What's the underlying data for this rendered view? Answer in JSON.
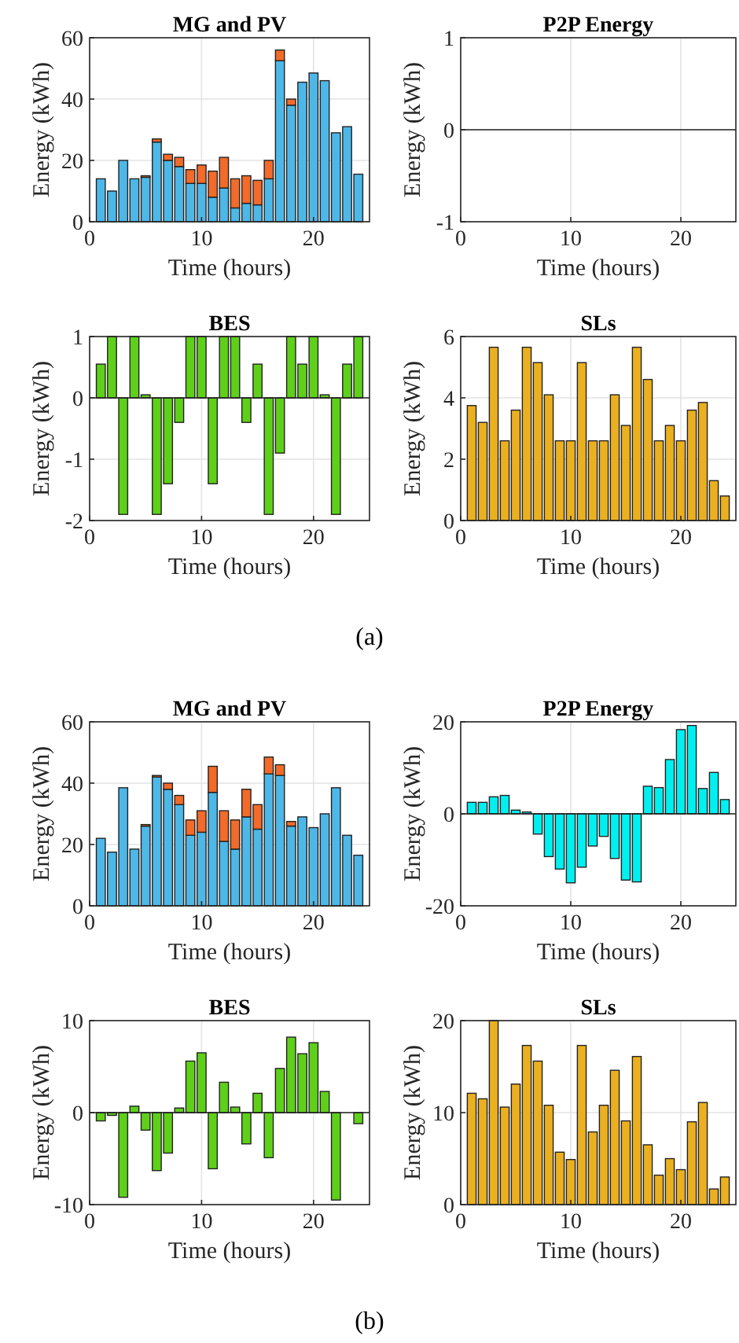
{
  "chart_data": [
    {
      "type": "bar",
      "title": "MG and PV",
      "xlabel": "Time (hours)",
      "ylabel": "Energy (kWh)",
      "x": [
        1,
        2,
        3,
        4,
        5,
        6,
        7,
        8,
        9,
        10,
        11,
        12,
        13,
        14,
        15,
        16,
        17,
        18,
        19,
        20,
        21,
        22,
        23,
        24
      ],
      "xlim": [
        0,
        25
      ],
      "xticks": [
        0,
        10,
        20
      ],
      "ylim": [
        0,
        60
      ],
      "yticks": [
        0,
        20,
        40,
        60
      ],
      "grid": true,
      "stacked": true,
      "series": [
        {
          "color": "#4db8e8",
          "values": [
            14,
            10,
            20,
            14,
            14.5,
            26,
            20,
            18,
            12.5,
            12.5,
            8,
            11,
            4.5,
            6,
            5.5,
            14,
            52.5,
            38,
            45.5,
            48.5,
            46,
            29,
            31,
            15.5
          ]
        },
        {
          "color": "#f26b2a",
          "values": [
            0,
            0,
            0,
            0,
            0.5,
            1,
            2,
            3,
            4.5,
            6,
            8.5,
            10,
            9.5,
            9,
            8,
            6,
            3.5,
            2,
            0,
            0,
            0,
            0,
            0,
            0
          ]
        }
      ]
    },
    {
      "type": "bar",
      "title": "P2P Energy",
      "xlabel": "Time (hours)",
      "ylabel": "Energy (kWh)",
      "x": [
        1,
        2,
        3,
        4,
        5,
        6,
        7,
        8,
        9,
        10,
        11,
        12,
        13,
        14,
        15,
        16,
        17,
        18,
        19,
        20,
        21,
        22,
        23,
        24
      ],
      "xlim": [
        0,
        25
      ],
      "xticks": [
        0,
        10,
        20
      ],
      "ylim": [
        -1,
        1
      ],
      "yticks": [
        -1,
        0,
        1
      ],
      "grid": true,
      "series": [
        {
          "color": "#00f0f0",
          "values": [
            0,
            0,
            0,
            0,
            0,
            0,
            0,
            0,
            0,
            0,
            0,
            0,
            0,
            0,
            0,
            0,
            0,
            0,
            0,
            0,
            0,
            0,
            0,
            0
          ]
        }
      ]
    },
    {
      "type": "bar",
      "title": "BES",
      "xlabel": "Time (hours)",
      "ylabel": "Energy (kWh)",
      "x": [
        1,
        2,
        3,
        4,
        5,
        6,
        7,
        8,
        9,
        10,
        11,
        12,
        13,
        14,
        15,
        16,
        17,
        18,
        19,
        20,
        21,
        22,
        23,
        24
      ],
      "xlim": [
        0,
        25
      ],
      "xticks": [
        0,
        10,
        20
      ],
      "ylim": [
        -2,
        1
      ],
      "yticks": [
        -2,
        -1,
        0,
        1
      ],
      "grid": true,
      "series": [
        {
          "color": "#5ed01a",
          "values": [
            0.55,
            1,
            -1.9,
            1,
            0.05,
            -1.9,
            -1.4,
            -0.4,
            1,
            1,
            -1.4,
            1,
            1,
            -0.4,
            0.55,
            -1.9,
            -0.9,
            1,
            0.55,
            1,
            0.05,
            -1.9,
            0.55,
            1
          ]
        }
      ]
    },
    {
      "type": "bar",
      "title": "SLs",
      "xlabel": "Time (hours)",
      "ylabel": "Energy (kWh)",
      "x": [
        1,
        2,
        3,
        4,
        5,
        6,
        7,
        8,
        9,
        10,
        11,
        12,
        13,
        14,
        15,
        16,
        17,
        18,
        19,
        20,
        21,
        22,
        23,
        24
      ],
      "xlim": [
        0,
        25
      ],
      "xticks": [
        0,
        10,
        20
      ],
      "ylim": [
        0,
        6
      ],
      "yticks": [
        0,
        2,
        4,
        6
      ],
      "grid": true,
      "annotations": [
        "(a)"
      ],
      "series": [
        {
          "color": "#ebb020",
          "values": [
            3.75,
            3.2,
            5.65,
            2.6,
            3.6,
            5.65,
            5.15,
            4.1,
            2.6,
            2.6,
            5.15,
            2.6,
            2.6,
            4.1,
            3.1,
            5.65,
            4.6,
            2.6,
            3.1,
            2.6,
            3.6,
            3.85,
            1.3,
            0.8
          ]
        }
      ]
    },
    {
      "type": "bar",
      "title": "MG and PV",
      "xlabel": "Time (hours)",
      "ylabel": "Energy (kWh)",
      "x": [
        1,
        2,
        3,
        4,
        5,
        6,
        7,
        8,
        9,
        10,
        11,
        12,
        13,
        14,
        15,
        16,
        17,
        18,
        19,
        20,
        21,
        22,
        23,
        24
      ],
      "xlim": [
        0,
        25
      ],
      "xticks": [
        0,
        10,
        20
      ],
      "ylim": [
        0,
        60
      ],
      "yticks": [
        0,
        20,
        40,
        60
      ],
      "grid": true,
      "stacked": true,
      "series": [
        {
          "color": "#4db8e8",
          "values": [
            22,
            17.5,
            38.5,
            18.5,
            26,
            42,
            38,
            33,
            23,
            24,
            37,
            21,
            18.5,
            29,
            25,
            43,
            42.5,
            26,
            29,
            25.5,
            30,
            38.5,
            23,
            16.5
          ]
        },
        {
          "color": "#f26b2a",
          "values": [
            0,
            0,
            0,
            0,
            0.5,
            0.5,
            2,
            3,
            5,
            7,
            8.5,
            10,
            9.5,
            9,
            8,
            5.5,
            3.5,
            1.5,
            null,
            0,
            null,
            0,
            0,
            0
          ]
        }
      ]
    },
    {
      "type": "bar",
      "title": "P2P Energy",
      "xlabel": "Time (hours)",
      "ylabel": "Energy (kWh)",
      "x": [
        1,
        2,
        3,
        4,
        5,
        6,
        7,
        8,
        9,
        10,
        11,
        12,
        13,
        14,
        15,
        16,
        17,
        18,
        19,
        20,
        21,
        22,
        23,
        24
      ],
      "xlim": [
        0,
        25
      ],
      "xticks": [
        0,
        10,
        20
      ],
      "ylim": [
        -20,
        20
      ],
      "yticks": [
        -20,
        0,
        20
      ],
      "grid": true,
      "series": [
        {
          "color": "#00f0f0",
          "values": [
            2.5,
            2.5,
            3.7,
            4,
            0.8,
            0.4,
            -4.4,
            -9.3,
            -12,
            -15,
            -11.6,
            -7,
            -4.9,
            -9.7,
            -14.4,
            -14.8,
            6,
            5.7,
            11.8,
            18.3,
            19.2,
            5.5,
            9,
            3.1
          ]
        }
      ]
    },
    {
      "type": "bar",
      "title": "BES",
      "xlabel": "Time (hours)",
      "ylabel": "Energy (kWh)",
      "x": [
        1,
        2,
        3,
        4,
        5,
        6,
        7,
        8,
        9,
        10,
        11,
        12,
        13,
        14,
        15,
        16,
        17,
        18,
        19,
        20,
        21,
        22,
        23,
        24
      ],
      "xlim": [
        0,
        25
      ],
      "xticks": [
        0,
        10,
        20
      ],
      "ylim": [
        -10,
        10
      ],
      "yticks": [
        -10,
        0,
        10
      ],
      "grid": true,
      "series": [
        {
          "color": "#5ed01a",
          "values": [
            -0.9,
            -0.3,
            -9.2,
            0.7,
            -1.9,
            -6.3,
            -4.4,
            0.5,
            5.6,
            6.5,
            -6.1,
            3.3,
            0.6,
            -3.4,
            2.1,
            -4.9,
            4.8,
            8.2,
            6.4,
            7.6,
            2.3,
            -9.5,
            0,
            -1.2
          ]
        }
      ]
    },
    {
      "type": "bar",
      "title": "SLs",
      "xlabel": "Time (hours)",
      "ylabel": "Energy (kWh)",
      "x": [
        1,
        2,
        3,
        4,
        5,
        6,
        7,
        8,
        9,
        10,
        11,
        12,
        13,
        14,
        15,
        16,
        17,
        18,
        19,
        20,
        21,
        22,
        23,
        24
      ],
      "xlim": [
        0,
        25
      ],
      "xticks": [
        0,
        10,
        20
      ],
      "ylim": [
        0,
        20
      ],
      "yticks": [
        0,
        10,
        20
      ],
      "grid": true,
      "annotations": [
        "(b)"
      ],
      "series": [
        {
          "color": "#ebb020",
          "values": [
            12.1,
            11.5,
            20,
            10.6,
            13.1,
            17.3,
            15.6,
            10.8,
            5.7,
            4.9,
            17.3,
            7.9,
            10.8,
            14.6,
            9.1,
            16.1,
            6.5,
            3.2,
            5,
            3.8,
            9,
            11.1,
            1.7,
            3
          ]
        }
      ]
    }
  ]
}
